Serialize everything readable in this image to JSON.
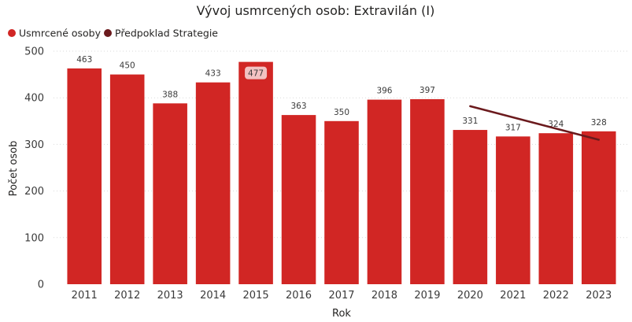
{
  "chart_data": {
    "type": "bar",
    "title": "Vývoj usmrcených osob: Extravilán (I)",
    "xlabel": "Rok",
    "ylabel": "Počet osob",
    "categories": [
      "2011",
      "2012",
      "2013",
      "2014",
      "2015",
      "2016",
      "2017",
      "2018",
      "2019",
      "2020",
      "2021",
      "2022",
      "2023"
    ],
    "series": [
      {
        "name": "Usmrcené osoby",
        "type": "bar",
        "color": "#d12624",
        "values": [
          463,
          450,
          388,
          433,
          477,
          363,
          350,
          396,
          397,
          331,
          317,
          324,
          328
        ],
        "labels": [
          "463",
          "450",
          "388",
          "433",
          "477",
          "363",
          "350",
          "396",
          "397",
          "331",
          "317",
          "324",
          "328"
        ],
        "highlighted_category": "2015"
      },
      {
        "name": "Předpoklad Strategie",
        "type": "line",
        "color": "#6b1a1d",
        "x": [
          "2020",
          "2023"
        ],
        "values": [
          382,
          310
        ]
      }
    ],
    "ylim": [
      0,
      500
    ],
    "yticks": [
      0,
      100,
      200,
      300,
      400,
      500
    ],
    "grid": true,
    "legend_position": "top-left"
  }
}
